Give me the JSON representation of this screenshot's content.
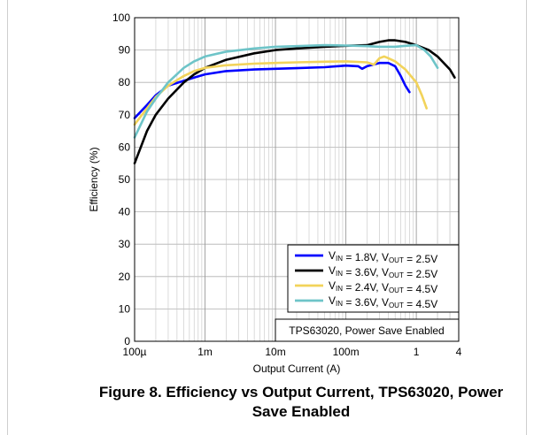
{
  "chart_data": {
    "type": "line",
    "xscale": "log",
    "xlim": [
      0.0001,
      4
    ],
    "ylim": [
      0,
      100
    ],
    "grid": true,
    "xlabel": "Output Current (A)",
    "ylabel": "Efficiency (%)",
    "xticks": [
      {
        "v": 0.0001,
        "label": "100µ"
      },
      {
        "v": 0.001,
        "label": "1m"
      },
      {
        "v": 0.01,
        "label": "10m"
      },
      {
        "v": 0.1,
        "label": "100m"
      },
      {
        "v": 1,
        "label": "1"
      },
      {
        "v": 4,
        "label": "4"
      }
    ],
    "yticks": [
      0,
      10,
      20,
      30,
      40,
      50,
      60,
      70,
      80,
      90,
      100
    ],
    "legend_position": "bottom-right",
    "series": [
      {
        "name": "VIN = 1.8V, VOUT = 2.5V",
        "vin": "1.8V",
        "vout": "2.5V",
        "color": "#0000ff",
        "x": [
          0.0001,
          0.00015,
          0.0002,
          0.0003,
          0.0005,
          0.0007,
          0.001,
          0.002,
          0.005,
          0.01,
          0.02,
          0.05,
          0.1,
          0.15,
          0.17,
          0.2,
          0.3,
          0.4,
          0.5,
          0.6,
          0.7,
          0.8
        ],
        "y": [
          69,
          73,
          76,
          79,
          80.5,
          81.5,
          82.5,
          83.5,
          84,
          84.2,
          84.4,
          84.7,
          85.2,
          85,
          84.2,
          85,
          86,
          86,
          85,
          82,
          79,
          77
        ]
      },
      {
        "name": "VIN = 3.6V, VOUT = 2.5V",
        "vin": "3.6V",
        "vout": "2.5V",
        "color": "#000000",
        "x": [
          0.0001,
          0.00015,
          0.0002,
          0.0003,
          0.0005,
          0.0007,
          0.001,
          0.002,
          0.005,
          0.01,
          0.02,
          0.05,
          0.1,
          0.2,
          0.3,
          0.4,
          0.5,
          0.7,
          1,
          1.5,
          2,
          3,
          3.5
        ],
        "y": [
          55,
          65,
          70,
          75,
          80,
          82.5,
          84.5,
          87,
          89,
          90,
          90.5,
          91,
          91.3,
          91.5,
          92.5,
          93,
          93,
          92.5,
          91.5,
          90,
          88,
          84,
          81.5
        ]
      },
      {
        "name": "VIN = 2.4V, VOUT = 4.5V",
        "vin": "2.4V",
        "vout": "4.5V",
        "color": "#f2d35a",
        "x": [
          0.0001,
          0.00015,
          0.0002,
          0.0003,
          0.0005,
          0.0007,
          0.001,
          0.002,
          0.005,
          0.01,
          0.02,
          0.05,
          0.1,
          0.2,
          0.25,
          0.3,
          0.35,
          0.4,
          0.5,
          0.7,
          1,
          1.2,
          1.4
        ],
        "y": [
          67,
          72,
          75.5,
          79,
          82,
          83.5,
          84.5,
          85.3,
          85.8,
          86,
          86.2,
          86.4,
          86.5,
          86.2,
          85.5,
          87.5,
          88,
          87.5,
          86.5,
          84,
          80,
          76,
          72
        ]
      },
      {
        "name": "VIN = 3.6V, VOUT = 4.5V",
        "vin": "3.6V",
        "vout": "4.5V",
        "color": "#6ec4c8",
        "x": [
          0.0001,
          0.00015,
          0.0002,
          0.0003,
          0.0005,
          0.0007,
          0.001,
          0.002,
          0.005,
          0.01,
          0.02,
          0.05,
          0.1,
          0.2,
          0.3,
          0.5,
          0.7,
          1,
          1.3,
          1.6,
          2
        ],
        "y": [
          63,
          71,
          75,
          80,
          84.5,
          86.5,
          88,
          89.5,
          90.5,
          91,
          91.2,
          91.5,
          91.4,
          91.2,
          91,
          91,
          91.3,
          91.5,
          90,
          88,
          84.5
        ]
      }
    ],
    "legend_label_parts": {
      "vin": "V",
      "vin_sub": "IN",
      "vout": "V",
      "vout_sub": "OUT"
    },
    "annotation": "TPS63020, Power Save Enabled"
  },
  "caption": {
    "line1": "Figure 8. Efficiency vs Output Current, TPS63020, Power",
    "line2": "Save Enabled"
  }
}
